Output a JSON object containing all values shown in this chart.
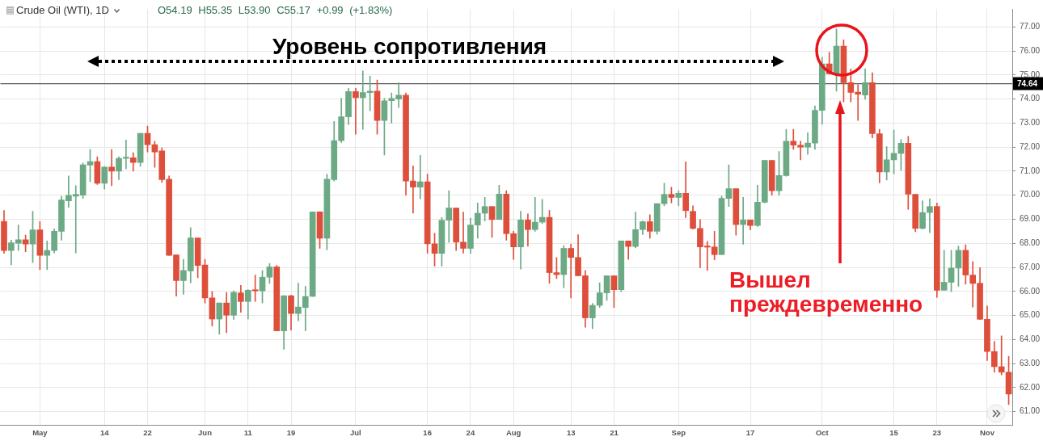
{
  "chart_data": {
    "type": "candlestick",
    "title": "Crude Oil (WTI), 1D",
    "subtitle": "O54.19 H55.35 L53.90 C55.17 +0.99 (+1.83%)",
    "annotations": [
      "Уровень сопротивления",
      "Вышел преждевременно"
    ],
    "categories": [
      null,
      null,
      null,
      null,
      null,
      "May",
      null,
      null,
      null,
      null,
      null,
      null,
      null,
      null,
      "14",
      null,
      null,
      null,
      null,
      null,
      "22",
      null,
      null,
      null,
      null,
      null,
      null,
      null,
      "Jun",
      null,
      null,
      null,
      null,
      null,
      "11",
      null,
      null,
      null,
      null,
      null,
      "19",
      null,
      null,
      null,
      null,
      null,
      null,
      null,
      null,
      "Jul",
      null,
      null,
      null,
      null,
      null,
      null,
      null,
      null,
      null,
      "16",
      null,
      null,
      null,
      null,
      null,
      "24",
      null,
      null,
      null,
      null,
      null,
      "Aug",
      null,
      null,
      null,
      null,
      null,
      null,
      null,
      "13",
      null,
      null,
      null,
      null,
      null,
      "21",
      null,
      null,
      null,
      null,
      null,
      null,
      null,
      null,
      "Sep",
      null,
      null,
      null,
      null,
      null,
      null,
      null,
      null,
      null,
      "17",
      null,
      null,
      null,
      null,
      null,
      null,
      null,
      null,
      null,
      "Oct",
      null,
      null,
      null,
      null,
      null,
      null,
      null,
      null,
      null,
      "15",
      null,
      null,
      null,
      null,
      null,
      "23",
      null,
      null,
      null,
      null,
      null,
      null,
      "Nov",
      null,
      null,
      null
    ],
    "ohlc": [
      [
        68.91,
        69.37,
        67.58,
        67.7
      ],
      [
        67.7,
        68.13,
        67.1,
        68.02
      ],
      [
        68.0,
        68.76,
        67.7,
        68.15
      ],
      [
        68.15,
        68.34,
        67.65,
        67.97
      ],
      [
        67.97,
        69.33,
        67.2,
        68.56
      ],
      [
        68.56,
        68.9,
        66.9,
        67.5
      ],
      [
        67.5,
        68.1,
        66.9,
        67.7
      ],
      [
        67.7,
        68.6,
        67.6,
        68.5
      ],
      [
        68.5,
        69.96,
        68.13,
        69.8
      ],
      [
        69.77,
        70.8,
        69.5,
        70.0
      ],
      [
        69.96,
        70.4,
        67.6,
        70.04
      ],
      [
        70.0,
        71.34,
        69.87,
        71.26
      ],
      [
        71.25,
        71.9,
        70.56,
        71.4
      ],
      [
        71.4,
        71.6,
        70.45,
        70.5
      ],
      [
        70.5,
        71.2,
        70.25,
        71.17
      ],
      [
        71.17,
        71.9,
        70.4,
        71.0
      ],
      [
        71.0,
        71.6,
        70.65,
        71.53
      ],
      [
        71.53,
        72.3,
        71.1,
        71.56
      ],
      [
        71.56,
        71.77,
        71.0,
        71.36
      ],
      [
        71.36,
        72.57,
        71.2,
        72.57
      ],
      [
        72.57,
        72.88,
        71.8,
        72.1
      ],
      [
        72.1,
        72.25,
        71.16,
        71.8
      ],
      [
        71.84,
        71.97,
        70.53,
        70.65
      ],
      [
        70.67,
        70.8,
        67.5,
        67.5
      ],
      [
        67.52,
        67.52,
        65.8,
        66.45
      ],
      [
        66.45,
        67.33,
        65.88,
        66.87
      ],
      [
        66.85,
        68.65,
        66.36,
        68.22
      ],
      [
        68.22,
        68.22,
        66.57,
        67.08
      ],
      [
        67.1,
        67.33,
        65.52,
        65.73
      ],
      [
        65.73,
        66.0,
        64.56,
        64.85
      ],
      [
        64.85,
        65.52,
        64.22,
        65.52
      ],
      [
        65.52,
        65.96,
        64.28,
        65.01
      ],
      [
        65.01,
        66.02,
        64.84,
        65.96
      ],
      [
        65.94,
        66.25,
        65.13,
        65.58
      ],
      [
        65.58,
        66.07,
        64.85,
        66.05
      ],
      [
        66.05,
        66.68,
        65.58,
        66.02
      ],
      [
        66.02,
        66.87,
        65.52,
        66.59
      ],
      [
        66.59,
        67.16,
        66.33,
        67.02
      ],
      [
        67.02,
        67.08,
        64.36,
        64.36
      ],
      [
        64.36,
        65.82,
        63.59,
        65.82
      ],
      [
        65.82,
        65.84,
        64.39,
        65.08
      ],
      [
        65.08,
        66.34,
        64.78,
        65.35
      ],
      [
        65.33,
        66.21,
        64.36,
        65.79
      ],
      [
        65.79,
        69.31,
        65.79,
        69.31
      ],
      [
        69.31,
        69.31,
        67.79,
        68.21
      ],
      [
        68.21,
        70.88,
        67.73,
        70.67
      ],
      [
        70.65,
        73.07,
        70.59,
        72.27
      ],
      [
        72.27,
        74.03,
        72.19,
        73.26
      ],
      [
        73.26,
        74.45,
        72.94,
        74.31
      ],
      [
        74.31,
        74.45,
        72.54,
        74.06
      ],
      [
        74.06,
        75.17,
        72.74,
        74.27
      ],
      [
        74.27,
        74.95,
        73.51,
        74.33
      ],
      [
        74.33,
        74.79,
        72.54,
        73.11
      ],
      [
        73.11,
        74.03,
        71.67,
        73.93
      ],
      [
        73.93,
        74.25,
        73.0,
        74.03
      ],
      [
        74.0,
        74.68,
        73.65,
        74.16
      ],
      [
        74.16,
        74.25,
        70.0,
        70.59
      ],
      [
        70.59,
        71.22,
        69.25,
        70.34
      ],
      [
        70.34,
        71.66,
        69.85,
        70.56
      ],
      [
        70.56,
        70.88,
        67.59,
        67.98
      ],
      [
        67.98,
        68.42,
        67.05,
        67.58
      ],
      [
        67.58,
        69.07,
        67.05,
        68.96
      ],
      [
        68.96,
        70.19,
        68.04,
        69.47
      ],
      [
        69.47,
        69.47,
        67.7,
        68.05
      ],
      [
        68.05,
        69.3,
        67.59,
        67.79
      ],
      [
        67.79,
        69.05,
        67.58,
        68.76
      ],
      [
        68.76,
        69.68,
        68.21,
        69.25
      ],
      [
        69.25,
        69.91,
        68.93,
        69.53
      ],
      [
        69.53,
        69.53,
        68.25,
        68.99
      ],
      [
        68.99,
        70.42,
        68.99,
        70.05
      ],
      [
        70.05,
        70.19,
        68.13,
        68.4
      ],
      [
        68.4,
        68.5,
        67.33,
        67.85
      ],
      [
        67.85,
        69.33,
        66.93,
        68.97
      ],
      [
        68.97,
        69.22,
        67.88,
        68.57
      ],
      [
        68.57,
        69.91,
        68.5,
        68.88
      ],
      [
        68.88,
        69.83,
        68.82,
        69.08
      ],
      [
        69.08,
        69.37,
        66.34,
        66.78
      ],
      [
        66.78,
        67.41,
        66.53,
        66.7
      ],
      [
        66.7,
        67.9,
        66.15,
        67.79
      ],
      [
        67.79,
        67.96,
        65.73,
        67.41
      ],
      [
        67.41,
        68.36,
        66.65,
        66.65
      ],
      [
        66.65,
        66.87,
        64.51,
        64.9
      ],
      [
        64.9,
        65.5,
        64.45,
        65.42
      ],
      [
        65.42,
        66.36,
        65.33,
        65.94
      ],
      [
        65.94,
        66.65,
        65.62,
        66.65
      ],
      [
        66.65,
        66.65,
        65.33,
        66.07
      ],
      [
        66.07,
        68.1,
        65.99,
        68.1
      ],
      [
        68.1,
        68.1,
        67.33,
        67.87
      ],
      [
        67.87,
        69.3,
        67.81,
        68.57
      ],
      [
        68.57,
        68.93,
        68.36,
        68.9
      ],
      [
        68.9,
        69.19,
        68.21,
        68.5
      ],
      [
        68.5,
        69.65,
        68.38,
        69.65
      ],
      [
        69.65,
        70.5,
        69.56,
        70.04
      ],
      [
        70.04,
        70.33,
        69.68,
        69.91
      ],
      [
        69.91,
        70.19,
        69.56,
        70.08
      ],
      [
        70.08,
        71.39,
        69.07,
        69.36
      ],
      [
        69.33,
        69.56,
        68.59,
        68.62
      ],
      [
        68.62,
        68.99,
        66.99,
        67.85
      ],
      [
        67.87,
        68.08,
        66.87,
        67.84
      ],
      [
        67.85,
        68.5,
        67.31,
        67.53
      ],
      [
        67.53,
        69.96,
        67.53,
        69.87
      ],
      [
        69.87,
        71.26,
        69.53,
        70.27
      ],
      [
        70.27,
        70.27,
        68.34,
        68.78
      ],
      [
        68.78,
        69.91,
        67.96,
        68.97
      ],
      [
        68.97,
        68.97,
        68.56,
        68.74
      ],
      [
        68.74,
        70.42,
        68.7,
        69.71
      ],
      [
        69.71,
        71.45,
        69.68,
        71.45
      ],
      [
        71.45,
        71.45,
        70.0,
        70.19
      ],
      [
        70.19,
        71.82,
        70.0,
        70.82
      ],
      [
        70.82,
        72.74,
        70.79,
        72.25
      ],
      [
        72.25,
        72.74,
        71.91,
        72.08
      ],
      [
        72.08,
        72.25,
        71.47,
        72.0
      ],
      [
        72.0,
        72.6,
        71.7,
        72.17
      ],
      [
        72.17,
        73.72,
        71.91,
        73.53
      ],
      [
        73.53,
        75.74,
        72.96,
        75.46
      ],
      [
        75.46,
        75.94,
        75.05,
        75.05
      ],
      [
        75.05,
        76.92,
        74.33,
        76.2
      ],
      [
        76.2,
        76.46,
        73.88,
        74.68
      ],
      [
        74.68,
        75.25,
        73.88,
        74.28
      ],
      [
        74.29,
        74.6,
        73.11,
        74.2
      ],
      [
        74.17,
        75.25,
        73.99,
        74.68
      ],
      [
        74.68,
        75.09,
        72.39,
        72.56
      ],
      [
        72.56,
        72.74,
        70.51,
        70.97
      ],
      [
        70.97,
        72.02,
        70.63,
        71.47
      ],
      [
        71.47,
        72.71,
        70.89,
        71.74
      ],
      [
        71.74,
        72.31,
        71.04,
        72.16
      ],
      [
        72.16,
        72.45,
        69.41,
        70.04
      ],
      [
        70.04,
        70.04,
        68.48,
        68.62
      ],
      [
        68.62,
        69.77,
        68.59,
        69.28
      ],
      [
        69.28,
        69.85,
        68.45,
        69.53
      ],
      [
        69.53,
        69.68,
        65.75,
        66.05
      ],
      [
        66.05,
        67.71,
        66.05,
        66.38
      ],
      [
        66.38,
        67.71,
        65.99,
        66.97
      ],
      [
        66.97,
        67.88,
        66.21,
        67.71
      ],
      [
        67.71,
        67.94,
        66.3,
        66.68
      ],
      [
        66.68,
        67.24,
        65.35,
        66.33
      ],
      [
        66.34,
        66.99,
        64.84,
        64.84
      ],
      [
        64.84,
        65.39,
        63.12,
        63.5
      ],
      [
        63.5,
        63.92,
        62.64,
        62.87
      ],
      [
        62.87,
        64.15,
        62.53,
        62.64
      ],
      [
        62.64,
        63.3,
        61.29,
        61.73
      ]
    ],
    "colors": [
      "#de4f3b",
      "#6ca985",
      "#6ca985",
      "#de4f3b",
      "#6ca985",
      "#de4f3b",
      "#6ca985",
      "#6ca985",
      "#6ca985",
      "#6ca985",
      "#6ca985",
      "#6ca985",
      "#6ca985",
      "#de4f3b",
      "#6ca985",
      "#de4f3b",
      "#6ca985",
      "#6ca985",
      "#de4f3b",
      "#6ca985",
      "#de4f3b",
      "#de4f3b",
      "#de4f3b",
      "#de4f3b",
      "#de4f3b",
      "#6ca985",
      "#6ca985",
      "#de4f3b",
      "#de4f3b",
      "#de4f3b",
      "#6ca985",
      "#de4f3b",
      "#6ca985",
      "#de4f3b",
      "#6ca985",
      "#de4f3b",
      "#6ca985",
      "#6ca985",
      "#de4f3b",
      "#6ca985",
      "#de4f3b",
      "#6ca985",
      "#6ca985",
      "#6ca985",
      "#de4f3b",
      "#6ca985",
      "#6ca985",
      "#6ca985",
      "#6ca985",
      "#de4f3b",
      "#6ca985",
      "#6ca985",
      "#de4f3b",
      "#6ca985",
      "#6ca985",
      "#6ca985",
      "#de4f3b",
      "#de4f3b",
      "#6ca985",
      "#de4f3b",
      "#de4f3b",
      "#6ca985",
      "#6ca985",
      "#de4f3b",
      "#de4f3b",
      "#6ca985",
      "#6ca985",
      "#6ca985",
      "#de4f3b",
      "#6ca985",
      "#de4f3b",
      "#de4f3b",
      "#6ca985",
      "#de4f3b",
      "#6ca985",
      "#6ca985",
      "#de4f3b",
      "#de4f3b",
      "#6ca985",
      "#de4f3b",
      "#de4f3b",
      "#de4f3b",
      "#6ca985",
      "#6ca985",
      "#6ca985",
      "#de4f3b",
      "#6ca985",
      "#de4f3b",
      "#6ca985",
      "#6ca985",
      "#de4f3b",
      "#6ca985",
      "#6ca985",
      "#de4f3b",
      "#6ca985",
      "#de4f3b",
      "#de4f3b",
      "#de4f3b",
      "#de4f3b",
      "#de4f3b",
      "#6ca985",
      "#6ca985",
      "#de4f3b",
      "#6ca985",
      "#de4f3b",
      "#6ca985",
      "#6ca985",
      "#de4f3b",
      "#6ca985",
      "#6ca985",
      "#de4f3b",
      "#de4f3b",
      "#6ca985",
      "#6ca985",
      "#6ca985",
      "#de4f3b",
      "#6ca985",
      "#de4f3b",
      "#de4f3b",
      "#de4f3b",
      "#6ca985",
      "#de4f3b",
      "#de4f3b",
      "#6ca985",
      "#6ca985",
      "#6ca985",
      "#de4f3b",
      "#de4f3b",
      "#6ca985",
      "#6ca985",
      "#de4f3b",
      "#6ca985",
      "#6ca985",
      "#6ca985",
      "#de4f3b",
      "#de4f3b",
      "#de4f3b",
      "#de4f3b",
      "#de4f3b",
      "#de4f3b",
      "#de4f3b"
    ],
    "ylim": [
      60.45,
      77.75
    ],
    "yticks": [
      {
        "value": 61,
        "label": "61.00"
      },
      {
        "value": 62,
        "label": "62.00"
      },
      {
        "value": 63,
        "label": "63.00"
      },
      {
        "value": 64,
        "label": "64.00"
      },
      {
        "value": 65,
        "label": "65.00"
      },
      {
        "value": 66,
        "label": "66.00"
      },
      {
        "value": 67,
        "label": "67.00"
      },
      {
        "value": 68,
        "label": "68.00"
      },
      {
        "value": 69,
        "label": "69.00"
      },
      {
        "value": 70,
        "label": "70.00"
      },
      {
        "value": 71,
        "label": "71.00"
      },
      {
        "value": 72,
        "label": "72.00"
      },
      {
        "value": 73,
        "label": "73.00"
      },
      {
        "value": 74,
        "label": "74.00"
      },
      {
        "value": 75,
        "label": "75.00"
      },
      {
        "value": 76,
        "label": "76.00"
      },
      {
        "value": 77,
        "label": "77.00"
      }
    ],
    "ref_lines": [
      {
        "axis": "y",
        "value": 74.64,
        "label": "74.64",
        "color": "#5a5a5a"
      }
    ],
    "grid": true
  }
}
